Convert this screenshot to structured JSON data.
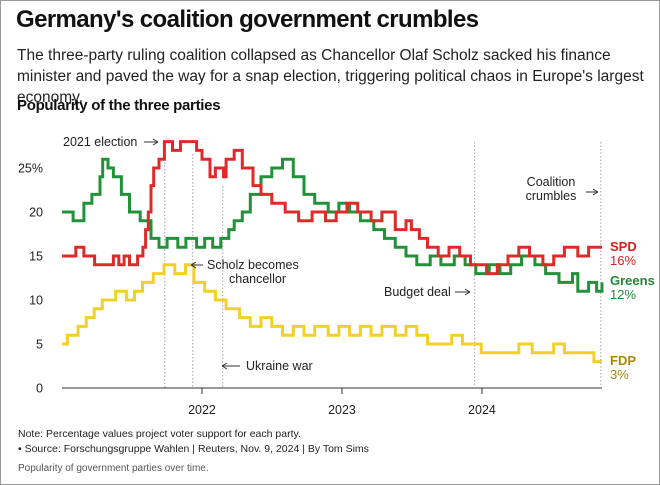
{
  "header": {
    "title": "Germany's coalition government crumbles",
    "subtitle": "The three-party ruling coalition collapsed as Chancellor Olaf Scholz sacked his finance minister and paved the way for a snap election, triggering political chaos in Europe's largest economy."
  },
  "chart_data": {
    "type": "line",
    "title": "Popularity of the three parties",
    "xlabel": "",
    "ylabel": "",
    "xlim": [
      "2021-01-01",
      "2024-11-09"
    ],
    "ylim": [
      0,
      28
    ],
    "yticks": [
      0,
      5,
      10,
      15,
      20,
      25
    ],
    "ytick_labels": [
      "0",
      "5",
      "10",
      "15",
      "20",
      "25%"
    ],
    "xticks": [
      "2022-01-01",
      "2023-01-01",
      "2024-01-01"
    ],
    "xtick_labels": [
      "2022",
      "2023",
      "2024"
    ],
    "grid": "vertical dotted event lines",
    "legend": "inline labels at line ends",
    "series": [
      {
        "name": "SPD",
        "color": "#e02a2a",
        "end_label": "16%",
        "points": [
          [
            "2021-01-01",
            15
          ],
          [
            "2021-01-20",
            15
          ],
          [
            "2021-02-06",
            16
          ],
          [
            "2021-02-27",
            15
          ],
          [
            "2021-03-27",
            14
          ],
          [
            "2021-05-15",
            15
          ],
          [
            "2021-05-29",
            14
          ],
          [
            "2021-06-12",
            15
          ],
          [
            "2021-06-26",
            14
          ],
          [
            "2021-07-17",
            15
          ],
          [
            "2021-07-31",
            16
          ],
          [
            "2021-08-07",
            18
          ],
          [
            "2021-08-14",
            20
          ],
          [
            "2021-08-21",
            23
          ],
          [
            "2021-08-28",
            25
          ],
          [
            "2021-09-11",
            26
          ],
          [
            "2021-09-25",
            28
          ],
          [
            "2021-10-16",
            27
          ],
          [
            "2021-11-06",
            28
          ],
          [
            "2021-12-18",
            27
          ],
          [
            "2022-01-01",
            26
          ],
          [
            "2022-01-22",
            24
          ],
          [
            "2022-02-05",
            25
          ],
          [
            "2022-02-26",
            24
          ],
          [
            "2022-03-05",
            26
          ],
          [
            "2022-03-26",
            27
          ],
          [
            "2022-04-16",
            25
          ],
          [
            "2022-05-14",
            23
          ],
          [
            "2022-06-04",
            22
          ],
          [
            "2022-07-02",
            21
          ],
          [
            "2022-08-06",
            20
          ],
          [
            "2022-09-10",
            19
          ],
          [
            "2022-10-15",
            20
          ],
          [
            "2022-11-19",
            19
          ],
          [
            "2022-12-17",
            20
          ],
          [
            "2023-01-14",
            21
          ],
          [
            "2023-02-11",
            20
          ],
          [
            "2023-03-18",
            19
          ],
          [
            "2023-04-15",
            20
          ],
          [
            "2023-05-20",
            18
          ],
          [
            "2023-06-17",
            19
          ],
          [
            "2023-07-01",
            18
          ],
          [
            "2023-07-22",
            17
          ],
          [
            "2023-08-12",
            16
          ],
          [
            "2023-09-09",
            15
          ],
          [
            "2023-10-07",
            16
          ],
          [
            "2023-11-04",
            15
          ],
          [
            "2023-12-02",
            14
          ],
          [
            "2024-01-13",
            13
          ],
          [
            "2024-02-10",
            14
          ],
          [
            "2024-03-09",
            15
          ],
          [
            "2024-04-06",
            16
          ],
          [
            "2024-05-04",
            15
          ],
          [
            "2024-06-08",
            14
          ],
          [
            "2024-07-06",
            15
          ],
          [
            "2024-08-03",
            16
          ],
          [
            "2024-09-07",
            15
          ],
          [
            "2024-10-05",
            16
          ],
          [
            "2024-11-09",
            16
          ]
        ]
      },
      {
        "name": "Greens",
        "color": "#23913a",
        "end_label": "12%",
        "points": [
          [
            "2021-01-01",
            20
          ],
          [
            "2021-01-30",
            19
          ],
          [
            "2021-02-27",
            21
          ],
          [
            "2021-03-20",
            22
          ],
          [
            "2021-04-10",
            24
          ],
          [
            "2021-04-17",
            26
          ],
          [
            "2021-05-01",
            25
          ],
          [
            "2021-05-15",
            24
          ],
          [
            "2021-06-05",
            22
          ],
          [
            "2021-06-26",
            20
          ],
          [
            "2021-07-24",
            19
          ],
          [
            "2021-08-21",
            17
          ],
          [
            "2021-09-11",
            16
          ],
          [
            "2021-10-02",
            17
          ],
          [
            "2021-10-30",
            16
          ],
          [
            "2021-11-20",
            17
          ],
          [
            "2021-12-18",
            16
          ],
          [
            "2022-01-08",
            17
          ],
          [
            "2022-01-29",
            16
          ],
          [
            "2022-02-19",
            17
          ],
          [
            "2022-03-12",
            18
          ],
          [
            "2022-03-26",
            19
          ],
          [
            "2022-04-16",
            20
          ],
          [
            "2022-05-07",
            22
          ],
          [
            "2022-06-04",
            24
          ],
          [
            "2022-07-02",
            25
          ],
          [
            "2022-07-30",
            26
          ],
          [
            "2022-08-27",
            24
          ],
          [
            "2022-09-24",
            22
          ],
          [
            "2022-10-22",
            21
          ],
          [
            "2022-11-26",
            20
          ],
          [
            "2022-12-24",
            21
          ],
          [
            "2023-01-21",
            20
          ],
          [
            "2023-02-18",
            19
          ],
          [
            "2023-03-25",
            18
          ],
          [
            "2023-04-22",
            17
          ],
          [
            "2023-05-20",
            16
          ],
          [
            "2023-06-17",
            15
          ],
          [
            "2023-07-15",
            14
          ],
          [
            "2023-08-19",
            15
          ],
          [
            "2023-09-16",
            14
          ],
          [
            "2023-10-21",
            15
          ],
          [
            "2023-11-18",
            14
          ],
          [
            "2023-12-16",
            13
          ],
          [
            "2024-01-20",
            14
          ],
          [
            "2024-02-17",
            13
          ],
          [
            "2024-03-16",
            14
          ],
          [
            "2024-04-13",
            15
          ],
          [
            "2024-05-18",
            14
          ],
          [
            "2024-06-15",
            13
          ],
          [
            "2024-07-20",
            12
          ],
          [
            "2024-08-24",
            13
          ],
          [
            "2024-09-07",
            11
          ],
          [
            "2024-10-05",
            12
          ],
          [
            "2024-10-26",
            11
          ],
          [
            "2024-11-09",
            12
          ]
        ]
      },
      {
        "name": "FDP",
        "color": "#f2d02a",
        "end_label": "3%",
        "points": [
          [
            "2021-01-01",
            5
          ],
          [
            "2021-01-15",
            6
          ],
          [
            "2021-02-12",
            7
          ],
          [
            "2021-03-05",
            8
          ],
          [
            "2021-03-26",
            9
          ],
          [
            "2021-04-16",
            10
          ],
          [
            "2021-05-21",
            11
          ],
          [
            "2021-06-18",
            10
          ],
          [
            "2021-07-09",
            11
          ],
          [
            "2021-07-30",
            12
          ],
          [
            "2021-08-27",
            13
          ],
          [
            "2021-09-24",
            14
          ],
          [
            "2021-10-22",
            13
          ],
          [
            "2021-11-19",
            14
          ],
          [
            "2021-12-11",
            12
          ],
          [
            "2022-01-08",
            11
          ],
          [
            "2022-02-05",
            10
          ],
          [
            "2022-03-05",
            9
          ],
          [
            "2022-04-09",
            8
          ],
          [
            "2022-05-07",
            7
          ],
          [
            "2022-06-04",
            8
          ],
          [
            "2022-07-02",
            7
          ],
          [
            "2022-07-30",
            6
          ],
          [
            "2022-08-27",
            7
          ],
          [
            "2022-09-24",
            6
          ],
          [
            "2022-10-22",
            7
          ],
          [
            "2022-11-26",
            6
          ],
          [
            "2022-12-24",
            7
          ],
          [
            "2023-01-21",
            6
          ],
          [
            "2023-02-18",
            7
          ],
          [
            "2023-03-18",
            6
          ],
          [
            "2023-04-15",
            7
          ],
          [
            "2023-05-20",
            6
          ],
          [
            "2023-06-17",
            7
          ],
          [
            "2023-07-15",
            6
          ],
          [
            "2023-08-12",
            5
          ],
          [
            "2023-10-14",
            6
          ],
          [
            "2023-11-11",
            5
          ],
          [
            "2023-12-30",
            4
          ],
          [
            "2024-04-06",
            5
          ],
          [
            "2024-05-11",
            4
          ],
          [
            "2024-07-06",
            5
          ],
          [
            "2024-08-03",
            4
          ],
          [
            "2024-10-19",
            3
          ],
          [
            "2024-11-09",
            3
          ]
        ]
      }
    ],
    "annotations": [
      {
        "id": "election",
        "text": "2021 election",
        "date": "2021-09-26"
      },
      {
        "id": "chancellor",
        "text": "Scholz becomes chancellor",
        "date": "2021-12-08"
      },
      {
        "id": "ukraine",
        "text": "Ukraine war",
        "date": "2022-02-24"
      },
      {
        "id": "budget",
        "text": "Budget deal",
        "date": "2023-12-13"
      },
      {
        "id": "coalition",
        "text": "Coalition crumbles",
        "date": "2024-11-06"
      }
    ]
  },
  "footer": {
    "note": "Note: Percentage values project voter support for each party.",
    "source": "• Source: Forschungsgruppe Wahlen | Reuters, Nov. 9, 2024 | By Tom Sims",
    "caption": "Popularity of government parties over time."
  }
}
